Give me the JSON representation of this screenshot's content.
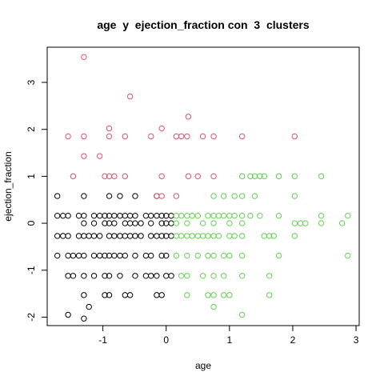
{
  "chart_data": {
    "type": "scatter",
    "title": "age  y  ejection_fraction con  3  clusters",
    "xlabel": "age",
    "ylabel": "ejection_fraction",
    "xlim": [
      -1.88,
      3.05
    ],
    "ylim": [
      -2.18,
      3.75
    ],
    "x_ticks": [
      -1,
      0,
      1,
      2,
      3
    ],
    "y_ticks": [
      -2,
      -1,
      0,
      1,
      2,
      3
    ],
    "x_tick_labels": [
      "-1",
      "0",
      "1",
      "2",
      "3"
    ],
    "y_tick_labels": [
      "-2",
      "-1",
      "0",
      "1",
      "2",
      "3"
    ],
    "marker": "open-circle",
    "grid": false,
    "legend": "none",
    "series": [
      {
        "cluster": 1,
        "color": "#000000",
        "points": [
          [
            -1.72,
            0.58
          ],
          [
            -1.72,
            0.16
          ],
          [
            -1.72,
            -0.27
          ],
          [
            -1.72,
            -0.69
          ],
          [
            -1.63,
            0.16
          ],
          [
            -1.63,
            -0.27
          ],
          [
            -1.55,
            0.16
          ],
          [
            -1.55,
            -0.27
          ],
          [
            -1.55,
            -0.69
          ],
          [
            -1.55,
            -1.12
          ],
          [
            -1.55,
            -1.95
          ],
          [
            -1.47,
            -0.69
          ],
          [
            -1.47,
            -1.12
          ],
          [
            -1.38,
            0.16
          ],
          [
            -1.38,
            -0.27
          ],
          [
            -1.38,
            -0.69
          ],
          [
            -1.3,
            0.58
          ],
          [
            -1.3,
            0.16
          ],
          [
            -1.3,
            0.0
          ],
          [
            -1.3,
            -0.27
          ],
          [
            -1.3,
            -0.69
          ],
          [
            -1.3,
            -1.12
          ],
          [
            -1.3,
            -1.53
          ],
          [
            -1.3,
            -2.03
          ],
          [
            -1.22,
            -0.27
          ],
          [
            -1.22,
            -1.78
          ],
          [
            -1.14,
            0.16
          ],
          [
            -1.14,
            0.0
          ],
          [
            -1.14,
            -0.27
          ],
          [
            -1.14,
            -0.69
          ],
          [
            -1.14,
            -1.12
          ],
          [
            -1.05,
            0.16
          ],
          [
            -1.05,
            -0.27
          ],
          [
            -1.05,
            -0.69
          ],
          [
            -0.97,
            0.16
          ],
          [
            -0.97,
            0.0
          ],
          [
            -0.97,
            -0.69
          ],
          [
            -0.97,
            -1.12
          ],
          [
            -0.97,
            -1.53
          ],
          [
            -0.9,
            0.58
          ],
          [
            -0.9,
            0.16
          ],
          [
            -0.9,
            0.0
          ],
          [
            -0.9,
            -0.27
          ],
          [
            -0.9,
            -0.69
          ],
          [
            -0.9,
            -1.12
          ],
          [
            -0.9,
            -1.53
          ],
          [
            -0.82,
            0.16
          ],
          [
            -0.82,
            0.0
          ],
          [
            -0.82,
            -0.27
          ],
          [
            -0.82,
            -0.69
          ],
          [
            -0.73,
            0.58
          ],
          [
            -0.73,
            0.16
          ],
          [
            -0.73,
            -0.27
          ],
          [
            -0.73,
            -0.69
          ],
          [
            -0.73,
            -1.12
          ],
          [
            -0.65,
            0.16
          ],
          [
            -0.65,
            0.0
          ],
          [
            -0.65,
            -0.27
          ],
          [
            -0.65,
            -0.69
          ],
          [
            -0.65,
            -1.53
          ],
          [
            -0.57,
            0.16
          ],
          [
            -0.57,
            0.0
          ],
          [
            -0.57,
            -0.27
          ],
          [
            -0.57,
            -1.53
          ],
          [
            -0.49,
            0.58
          ],
          [
            -0.49,
            0.16
          ],
          [
            -0.49,
            0.0
          ],
          [
            -0.49,
            -0.27
          ],
          [
            -0.49,
            -0.69
          ],
          [
            -0.49,
            -1.12
          ],
          [
            -0.4,
            0.0
          ],
          [
            -0.4,
            -0.27
          ],
          [
            -0.32,
            0.16
          ],
          [
            -0.32,
            -0.69
          ],
          [
            -0.32,
            -1.12
          ],
          [
            -0.24,
            0.16
          ],
          [
            -0.24,
            0.0
          ],
          [
            -0.24,
            -0.27
          ],
          [
            -0.24,
            -0.69
          ],
          [
            -0.24,
            -1.12
          ],
          [
            -0.15,
            0.58
          ],
          [
            -0.15,
            0.16
          ],
          [
            -0.15,
            -0.27
          ],
          [
            -0.15,
            -1.12
          ],
          [
            -0.15,
            -1.53
          ],
          [
            -0.07,
            0.16
          ],
          [
            -0.07,
            0.0
          ],
          [
            -0.07,
            -0.27
          ],
          [
            -0.07,
            -0.69
          ],
          [
            -0.07,
            -1.53
          ],
          [
            0.0,
            0.16
          ],
          [
            0.0,
            0.0
          ],
          [
            0.0,
            -0.27
          ],
          [
            0.0,
            -0.69
          ],
          [
            0.0,
            -1.12
          ],
          [
            0.08,
            0.16
          ],
          [
            0.08,
            0.0
          ],
          [
            0.08,
            -0.27
          ],
          [
            0.08,
            -1.12
          ]
        ]
      },
      {
        "cluster": 2,
        "color": "#DF536B",
        "points": [
          [
            -1.3,
            3.54
          ],
          [
            -1.55,
            1.85
          ],
          [
            -1.3,
            1.85
          ],
          [
            -0.9,
            1.85
          ],
          [
            -0.65,
            1.85
          ],
          [
            -0.24,
            1.85
          ],
          [
            0.16,
            1.85
          ],
          [
            0.24,
            1.85
          ],
          [
            0.33,
            1.85
          ],
          [
            0.58,
            1.85
          ],
          [
            0.75,
            1.85
          ],
          [
            1.2,
            1.85
          ],
          [
            2.03,
            1.85
          ],
          [
            -0.57,
            2.7
          ],
          [
            -0.9,
            2.02
          ],
          [
            -0.07,
            2.02
          ],
          [
            0.35,
            2.27
          ],
          [
            -1.3,
            1.43
          ],
          [
            -1.05,
            1.43
          ],
          [
            -1.47,
            1.0
          ],
          [
            -0.97,
            1.0
          ],
          [
            -0.9,
            1.0
          ],
          [
            -0.82,
            1.0
          ],
          [
            -0.65,
            1.0
          ],
          [
            -0.07,
            1.0
          ],
          [
            0.35,
            1.0
          ],
          [
            0.5,
            1.0
          ],
          [
            0.75,
            1.0
          ],
          [
            -0.15,
            0.58
          ],
          [
            -0.07,
            0.58
          ],
          [
            0.16,
            0.58
          ]
        ]
      },
      {
        "cluster": 3,
        "color": "#61D04F",
        "points": [
          [
            0.16,
            0.16
          ],
          [
            0.16,
            0.0
          ],
          [
            0.16,
            -0.27
          ],
          [
            0.16,
            -0.69
          ],
          [
            0.24,
            0.16
          ],
          [
            0.24,
            -0.27
          ],
          [
            0.24,
            -1.12
          ],
          [
            0.33,
            0.16
          ],
          [
            0.33,
            0.0
          ],
          [
            0.33,
            -0.27
          ],
          [
            0.33,
            -0.69
          ],
          [
            0.33,
            -1.12
          ],
          [
            0.33,
            -1.53
          ],
          [
            0.41,
            0.16
          ],
          [
            0.41,
            -0.27
          ],
          [
            0.5,
            0.16
          ],
          [
            0.5,
            -0.27
          ],
          [
            0.5,
            -0.69
          ],
          [
            0.58,
            0.0
          ],
          [
            0.58,
            -0.27
          ],
          [
            0.58,
            -1.12
          ],
          [
            0.66,
            0.16
          ],
          [
            0.66,
            -0.27
          ],
          [
            0.66,
            -0.69
          ],
          [
            0.66,
            -1.53
          ],
          [
            0.75,
            0.58
          ],
          [
            0.75,
            0.16
          ],
          [
            0.75,
            0.0
          ],
          [
            0.75,
            -0.27
          ],
          [
            0.75,
            -0.69
          ],
          [
            0.75,
            -1.12
          ],
          [
            0.75,
            -1.53
          ],
          [
            0.75,
            -1.78
          ],
          [
            0.83,
            0.16
          ],
          [
            0.83,
            -0.27
          ],
          [
            0.91,
            0.58
          ],
          [
            0.91,
            0.16
          ],
          [
            0.91,
            -0.69
          ],
          [
            0.91,
            -1.12
          ],
          [
            0.91,
            -1.53
          ],
          [
            1.0,
            0.16
          ],
          [
            1.0,
            0.0
          ],
          [
            1.0,
            -0.27
          ],
          [
            1.0,
            -0.69
          ],
          [
            1.0,
            -1.53
          ],
          [
            1.08,
            0.58
          ],
          [
            1.08,
            0.16
          ],
          [
            1.08,
            -0.27
          ],
          [
            1.2,
            1.0
          ],
          [
            1.2,
            0.58
          ],
          [
            1.2,
            0.16
          ],
          [
            1.2,
            0.0
          ],
          [
            1.2,
            -0.27
          ],
          [
            1.2,
            -0.69
          ],
          [
            1.2,
            -1.12
          ],
          [
            1.2,
            -1.95
          ],
          [
            1.33,
            1.0
          ],
          [
            1.33,
            0.16
          ],
          [
            1.4,
            1.0
          ],
          [
            1.4,
            0.58
          ],
          [
            1.48,
            1.0
          ],
          [
            1.48,
            0.16
          ],
          [
            1.55,
            1.0
          ],
          [
            1.55,
            -0.27
          ],
          [
            1.63,
            -0.27
          ],
          [
            1.63,
            -1.12
          ],
          [
            1.63,
            -1.53
          ],
          [
            1.7,
            -0.27
          ],
          [
            1.78,
            1.0
          ],
          [
            1.78,
            0.16
          ],
          [
            1.78,
            -0.69
          ],
          [
            2.03,
            1.0
          ],
          [
            2.03,
            0.58
          ],
          [
            2.03,
            0.0
          ],
          [
            2.03,
            -0.27
          ],
          [
            2.12,
            0.0
          ],
          [
            2.2,
            0.0
          ],
          [
            2.45,
            1.0
          ],
          [
            2.45,
            0.16
          ],
          [
            2.45,
            0.0
          ],
          [
            2.78,
            0.0
          ],
          [
            2.87,
            0.16
          ],
          [
            2.87,
            -0.69
          ]
        ]
      }
    ]
  }
}
